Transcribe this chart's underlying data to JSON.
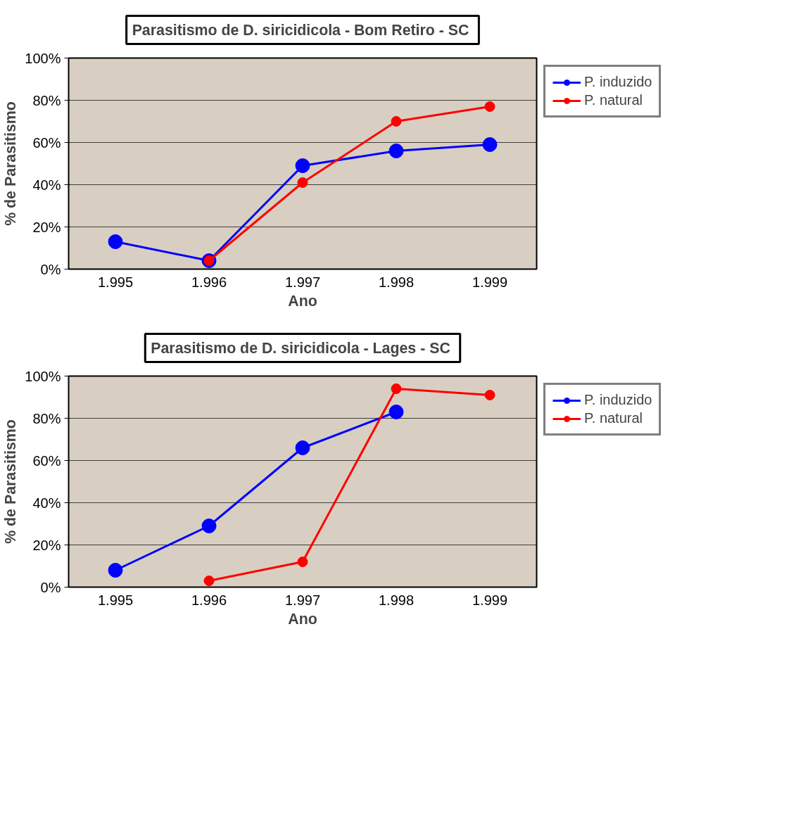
{
  "chart_data": [
    {
      "type": "line",
      "title": "Parasitismo de D. siricidicola  - Bom Retiro - SC",
      "xlabel": "Ano",
      "ylabel": "% de Parasitismo",
      "categories": [
        "1.995",
        "1.996",
        "1.997",
        "1.998",
        "1.999"
      ],
      "series": [
        {
          "name": "P. induzido",
          "color": "#0000ff",
          "values": [
            13,
            4,
            49,
            56,
            59
          ]
        },
        {
          "name": "P. natural",
          "color": "#ff0000",
          "values": [
            null,
            4,
            41,
            70,
            77
          ]
        }
      ],
      "ylim": [
        0,
        100
      ],
      "yticks": [
        {
          "value": 0,
          "label": "0%"
        },
        {
          "value": 20,
          "label": "20%"
        },
        {
          "value": 40,
          "label": "40%"
        },
        {
          "value": 60,
          "label": "60%"
        },
        {
          "value": 80,
          "label": "80%"
        },
        {
          "value": 100,
          "label": "100%"
        }
      ],
      "grid": "y",
      "legend": "top right",
      "marker": "circle"
    },
    {
      "type": "line",
      "title": "Parasitismo de D. siricidicola  - Lages - SC",
      "xlabel": "Ano",
      "ylabel": "% de Parasitismo",
      "categories": [
        "1.995",
        "1.996",
        "1.997",
        "1.998",
        "1.999"
      ],
      "series": [
        {
          "name": "P. induzido",
          "color": "#0000ff",
          "values": [
            8,
            29,
            66,
            83,
            null
          ]
        },
        {
          "name": "P. natural",
          "color": "#ff0000",
          "values": [
            null,
            3,
            12,
            94,
            91
          ]
        }
      ],
      "ylim": [
        0,
        100
      ],
      "yticks": [
        {
          "value": 0,
          "label": "0%"
        },
        {
          "value": 20,
          "label": "20%"
        },
        {
          "value": 40,
          "label": "40%"
        },
        {
          "value": 60,
          "label": "60%"
        },
        {
          "value": 80,
          "label": "80%"
        },
        {
          "value": 100,
          "label": "100%"
        }
      ],
      "grid": "y",
      "legend": "top right",
      "marker": "circle"
    }
  ]
}
